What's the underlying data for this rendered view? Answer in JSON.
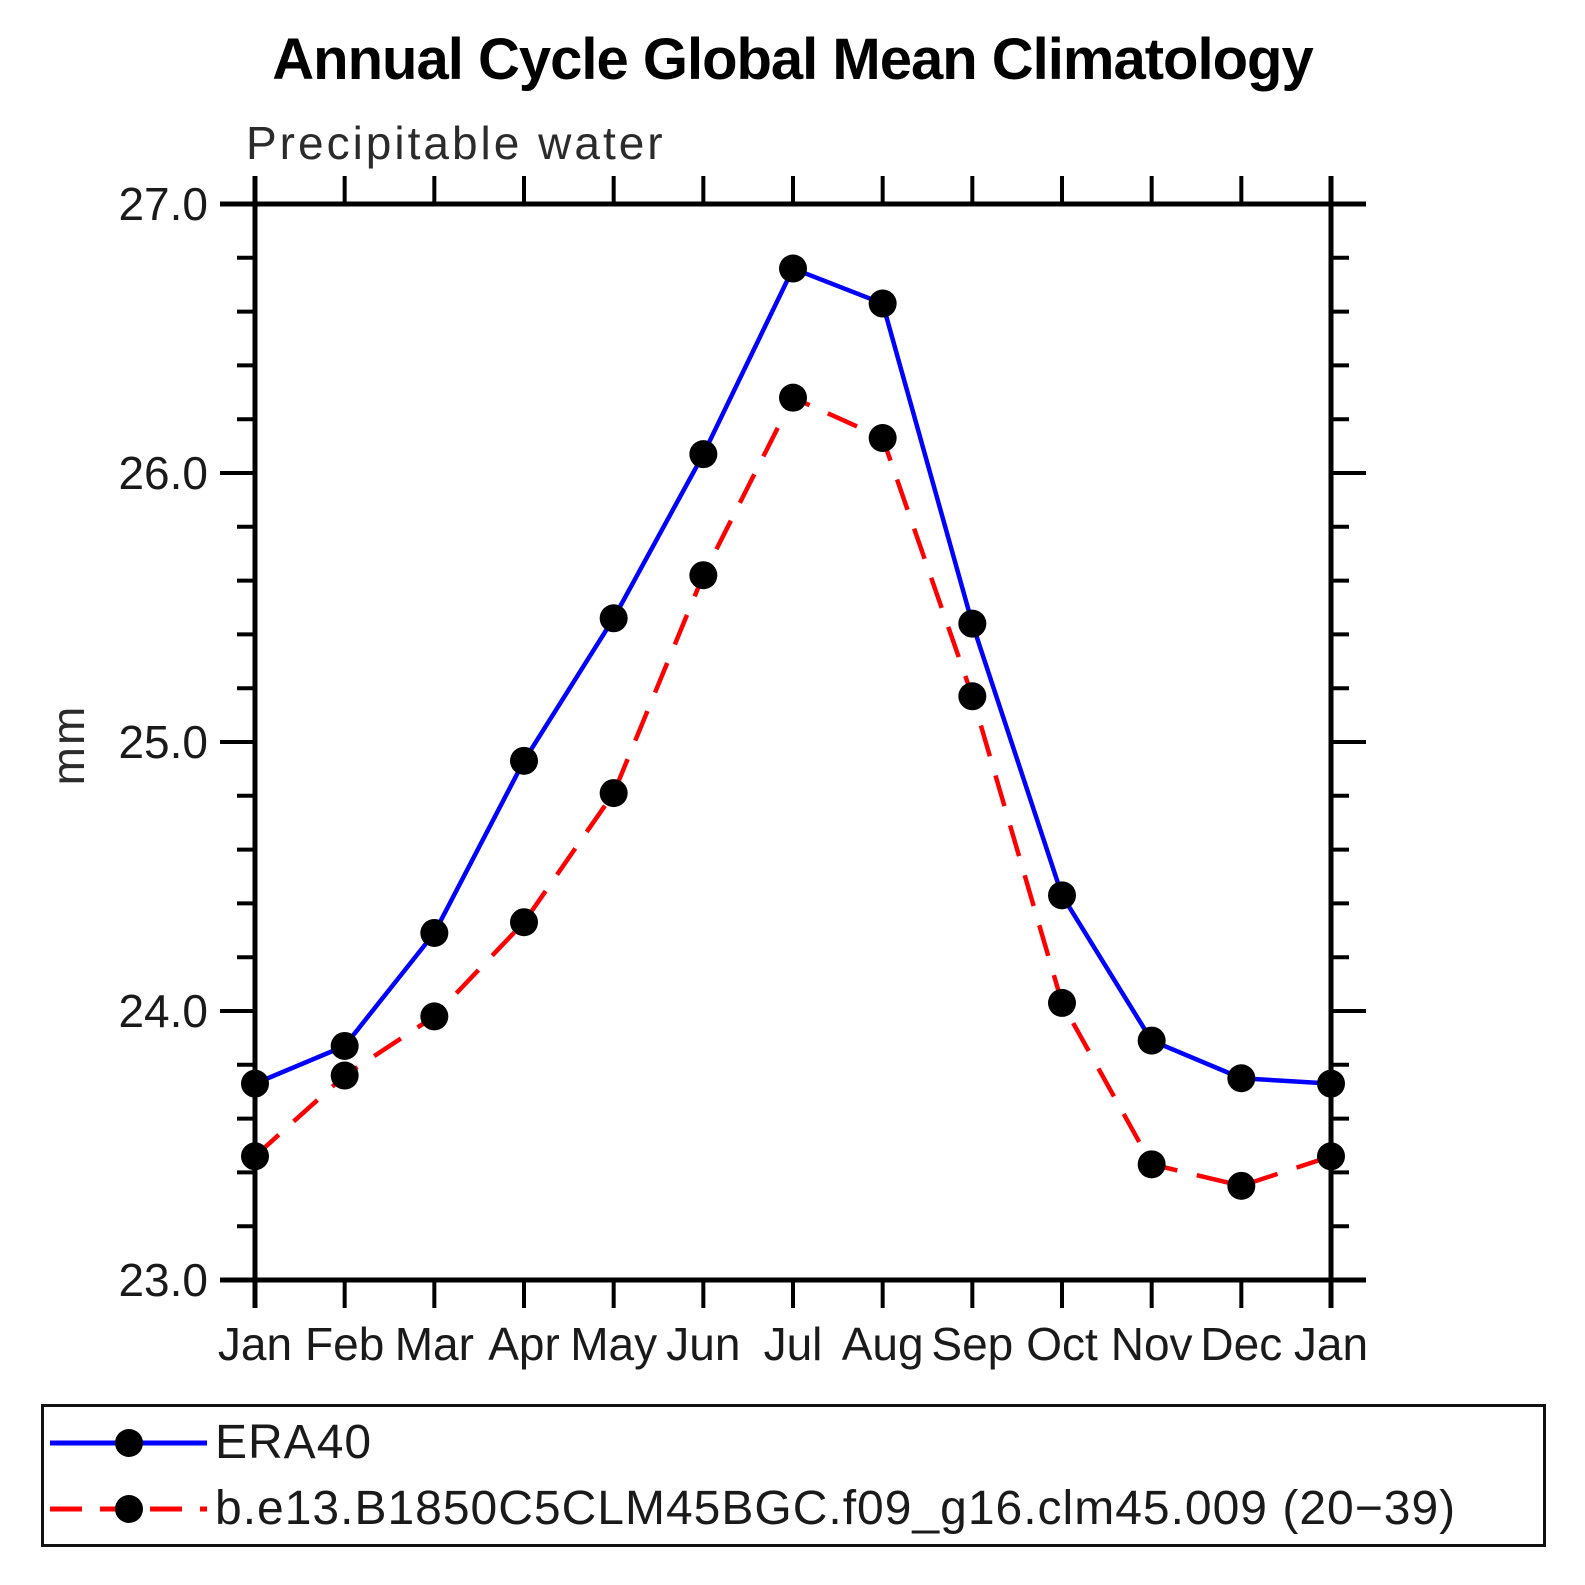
{
  "chart_data": {
    "type": "line",
    "title": "Annual Cycle Global Mean Climatology",
    "subtitle": "Precipitable water",
    "ylabel": "mm",
    "categories": [
      "Jan",
      "Feb",
      "Mar",
      "Apr",
      "May",
      "Jun",
      "Jul",
      "Aug",
      "Sep",
      "Oct",
      "Nov",
      "Dec",
      "Jan"
    ],
    "ylim": [
      23.0,
      27.0
    ],
    "ytick_major": [
      23.0,
      24.0,
      25.0,
      26.0,
      27.0
    ],
    "ytick_major_labels": [
      "23.0",
      "24.0",
      "25.0",
      "26.0",
      "27.0"
    ],
    "ytick_minor_step": 0.2,
    "grid": false,
    "legend_position": "bottom",
    "axis_color": "#000000",
    "series": [
      {
        "name": "ERA40",
        "line_color": "#0000ff",
        "line_style": "solid",
        "marker": "filled-circle",
        "marker_color": "#000000",
        "values": [
          23.73,
          23.87,
          24.29,
          24.93,
          25.46,
          26.07,
          26.76,
          26.63,
          25.44,
          24.43,
          23.89,
          23.75,
          23.73
        ]
      },
      {
        "name": "b.e13.B1850C5CLM45BGC.f09_g16.clm45.009 (20−39)",
        "line_color": "#ff0000",
        "line_style": "dashed",
        "marker": "filled-circle",
        "marker_color": "#000000",
        "values": [
          23.46,
          23.76,
          23.98,
          24.33,
          24.81,
          25.62,
          26.28,
          26.13,
          25.17,
          24.03,
          23.43,
          23.35,
          23.46
        ]
      }
    ]
  }
}
